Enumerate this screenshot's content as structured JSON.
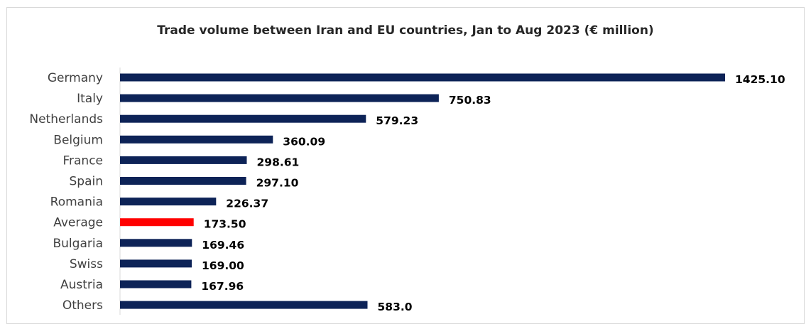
{
  "chart_data": {
    "type": "bar",
    "orientation": "horizontal",
    "title": "Trade volume between Iran and EU countries, Jan to Aug 2023 (€ million)",
    "xlabel": "",
    "ylabel": "",
    "grid": false,
    "legend": "none",
    "xlim": [
      0,
      1425.1
    ],
    "categories": [
      "Germany",
      "Italy",
      "Netherlands",
      "Belgium",
      "France",
      "Spain",
      "Romania",
      "Average",
      "Bulgaria",
      "Swiss",
      "Austria",
      "Others"
    ],
    "values": [
      1425.1,
      750.83,
      579.23,
      360.09,
      298.61,
      297.1,
      226.37,
      173.5,
      169.46,
      169.0,
      167.96,
      583.0
    ],
    "value_labels": [
      "1425.10",
      "750.83",
      "579.23",
      "360.09",
      "298.61",
      "297.10",
      "226.37",
      "173.50",
      "169.46",
      "169.00",
      "167.96",
      "583.0"
    ],
    "colors": {
      "default": "#0d2357",
      "highlight": "#ff0000",
      "highlight_category": "Average",
      "axis": "#d9d9d9"
    }
  }
}
